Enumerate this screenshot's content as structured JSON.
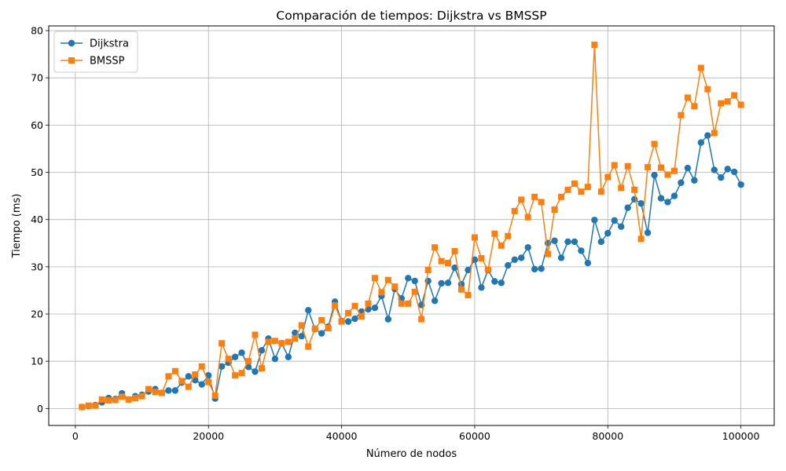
{
  "chart_data": {
    "type": "line",
    "title": "Comparación de tiempos: Dijkstra vs BMSSP",
    "xlabel": "Número de nodos",
    "ylabel": "Tiempo (ms)",
    "xlim": [
      -4000,
      105000
    ],
    "ylim": [
      -3.6,
      81
    ],
    "xticks": [
      0,
      20000,
      40000,
      60000,
      80000,
      100000
    ],
    "xtick_labels": [
      "0",
      "20000",
      "40000",
      "60000",
      "80000",
      "100000"
    ],
    "yticks": [
      0,
      10,
      20,
      30,
      40,
      50,
      60,
      70,
      80
    ],
    "ytick_labels": [
      "0",
      "10",
      "20",
      "30",
      "40",
      "50",
      "60",
      "70",
      "80"
    ],
    "grid": true,
    "legend_position": "upper-left",
    "x": [
      1000,
      2000,
      3000,
      4000,
      5000,
      6000,
      7000,
      8000,
      9000,
      10000,
      11000,
      12000,
      13000,
      14000,
      15000,
      16000,
      17000,
      18000,
      19000,
      20000,
      21000,
      22000,
      23000,
      24000,
      25000,
      26000,
      27000,
      28000,
      29000,
      30000,
      31000,
      32000,
      33000,
      34000,
      35000,
      36000,
      37000,
      38000,
      39000,
      40000,
      41000,
      42000,
      43000,
      44000,
      45000,
      46000,
      47000,
      48000,
      49000,
      50000,
      51000,
      52000,
      53000,
      54000,
      55000,
      56000,
      57000,
      58000,
      59000,
      60000,
      61000,
      62000,
      63000,
      64000,
      65000,
      66000,
      67000,
      68000,
      69000,
      70000,
      71000,
      72000,
      73000,
      74000,
      75000,
      76000,
      77000,
      78000,
      79000,
      80000,
      81000,
      82000,
      83000,
      84000,
      85000,
      86000,
      87000,
      88000,
      89000,
      90000,
      91000,
      92000,
      93000,
      94000,
      95000,
      96000,
      97000,
      98000,
      99000,
      100000
    ],
    "series": [
      {
        "name": "Dijkstra",
        "color": "#1f77b4",
        "marker": "circle",
        "values": [
          0.3,
          0.5,
          0.7,
          1.3,
          2.2,
          2.0,
          3.2,
          1.9,
          2.6,
          2.9,
          3.6,
          4.1,
          3.3,
          3.8,
          3.8,
          5.5,
          6.8,
          6.0,
          5.1,
          7.0,
          2.1,
          8.9,
          9.7,
          10.9,
          11.8,
          8.8,
          7.8,
          12.3,
          14.8,
          10.5,
          13.8,
          10.9,
          16.0,
          15.3,
          20.8,
          16.8,
          15.9,
          17.3,
          22.6,
          18.5,
          18.4,
          19.0,
          20.5,
          21.0,
          21.3,
          23.8,
          18.9,
          25.3,
          23.3,
          27.6,
          27.0,
          21.9,
          27.0,
          22.8,
          26.5,
          26.6,
          29.8,
          26.3,
          29.3,
          31.5,
          25.6,
          29.3,
          26.9,
          26.6,
          30.3,
          31.5,
          31.9,
          34.1,
          29.5,
          29.6,
          35.0,
          35.5,
          31.9,
          35.3,
          35.3,
          33.4,
          30.8,
          39.9,
          35.3,
          37.1,
          39.8,
          38.5,
          42.5,
          44.3,
          43.4,
          37.2,
          49.4,
          44.5,
          43.7,
          45.0,
          47.8,
          50.9,
          48.3,
          56.3,
          57.8,
          50.5,
          48.9,
          50.7,
          50.1,
          47.4
        ]
      },
      {
        "name": "BMSSP",
        "color": "#ff7f0e",
        "marker": "square",
        "values": [
          0.3,
          0.6,
          0.6,
          1.9,
          1.7,
          1.8,
          2.5,
          1.9,
          2.2,
          2.6,
          4.1,
          3.5,
          3.3,
          6.8,
          7.9,
          5.8,
          4.6,
          7.2,
          8.9,
          5.6,
          2.7,
          13.8,
          10.5,
          7.0,
          7.5,
          10.0,
          15.6,
          8.5,
          14.1,
          14.3,
          13.8,
          14.1,
          14.8,
          17.6,
          13.1,
          16.9,
          18.7,
          17.0,
          21.8,
          18.4,
          20.2,
          21.7,
          19.5,
          22.2,
          27.6,
          24.6,
          27.2,
          25.8,
          22.2,
          22.2,
          24.7,
          18.9,
          29.3,
          34.1,
          31.2,
          30.8,
          33.3,
          25.2,
          24.0,
          36.2,
          31.8,
          29.4,
          37.0,
          34.5,
          36.5,
          41.8,
          44.2,
          40.5,
          44.8,
          43.7,
          32.7,
          42.1,
          44.8,
          46.3,
          47.6,
          45.9,
          46.9,
          77.0,
          45.9,
          49.0,
          51.5,
          46.7,
          51.3,
          46.3,
          35.9,
          51.1,
          56.0,
          51.0,
          49.5,
          50.3,
          62.1,
          65.8,
          64.0,
          72.1,
          67.6,
          58.3,
          64.6,
          65.0,
          66.3,
          64.3
        ]
      }
    ]
  }
}
